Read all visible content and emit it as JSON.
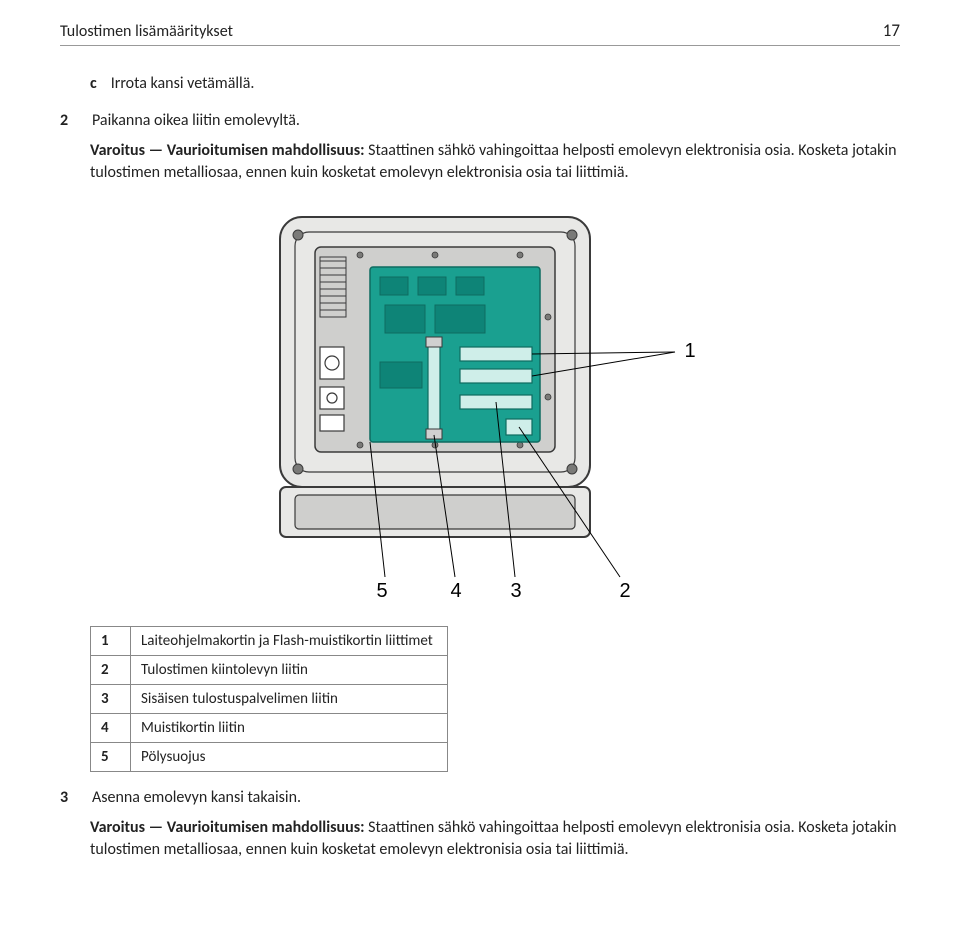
{
  "header": {
    "title": "Tulostimen lisämääritykset",
    "page": "17"
  },
  "step_c": {
    "label": "c",
    "text": "Irrota kansi vetämällä."
  },
  "step_2": {
    "label": "2",
    "text": "Paikanna oikea liitin emolevyltä."
  },
  "warn1": {
    "bold": "Varoitus — Vaurioitumisen mahdollisuus:",
    "rest": " Staattinen sähkö vahingoittaa helposti emolevyn elektronisia osia. Kosketa jotakin tulostimen metalliosaa, ennen kuin kosketat emolevyn elektronisia osia tai liittimiä."
  },
  "figure": {
    "callouts": {
      "c1": "1",
      "c2": "2",
      "c3": "3",
      "c4": "4",
      "c5": "5"
    },
    "colors": {
      "outline": "#3a3a3a",
      "panel_fill": "#e8e8e6",
      "panel_dark": "#cfcfcd",
      "board": "#1aa090",
      "board_stroke": "#0e6b60",
      "screw": "#7a7a78",
      "label_stroke": "#000000",
      "slot_fill": "#cfeee9"
    }
  },
  "legend": {
    "rows": [
      {
        "n": "1",
        "t": "Laiteohjelmakortin ja Flash-muistikortin liittimet"
      },
      {
        "n": "2",
        "t": "Tulostimen kiintolevyn liitin"
      },
      {
        "n": "3",
        "t": "Sisäisen tulostuspalvelimen liitin"
      },
      {
        "n": "4",
        "t": "Muistikortin liitin"
      },
      {
        "n": "5",
        "t": "Pölysuojus"
      }
    ]
  },
  "step_3": {
    "label": "3",
    "text": "Asenna emolevyn kansi takaisin."
  },
  "warn2": {
    "bold": "Varoitus — Vaurioitumisen mahdollisuus:",
    "rest": " Staattinen sähkö vahingoittaa helposti emolevyn elektronisia osia. Kosketa jotakin tulostimen metalliosaa, ennen kuin kosketat emolevyn elektronisia osia tai liittimiä."
  }
}
